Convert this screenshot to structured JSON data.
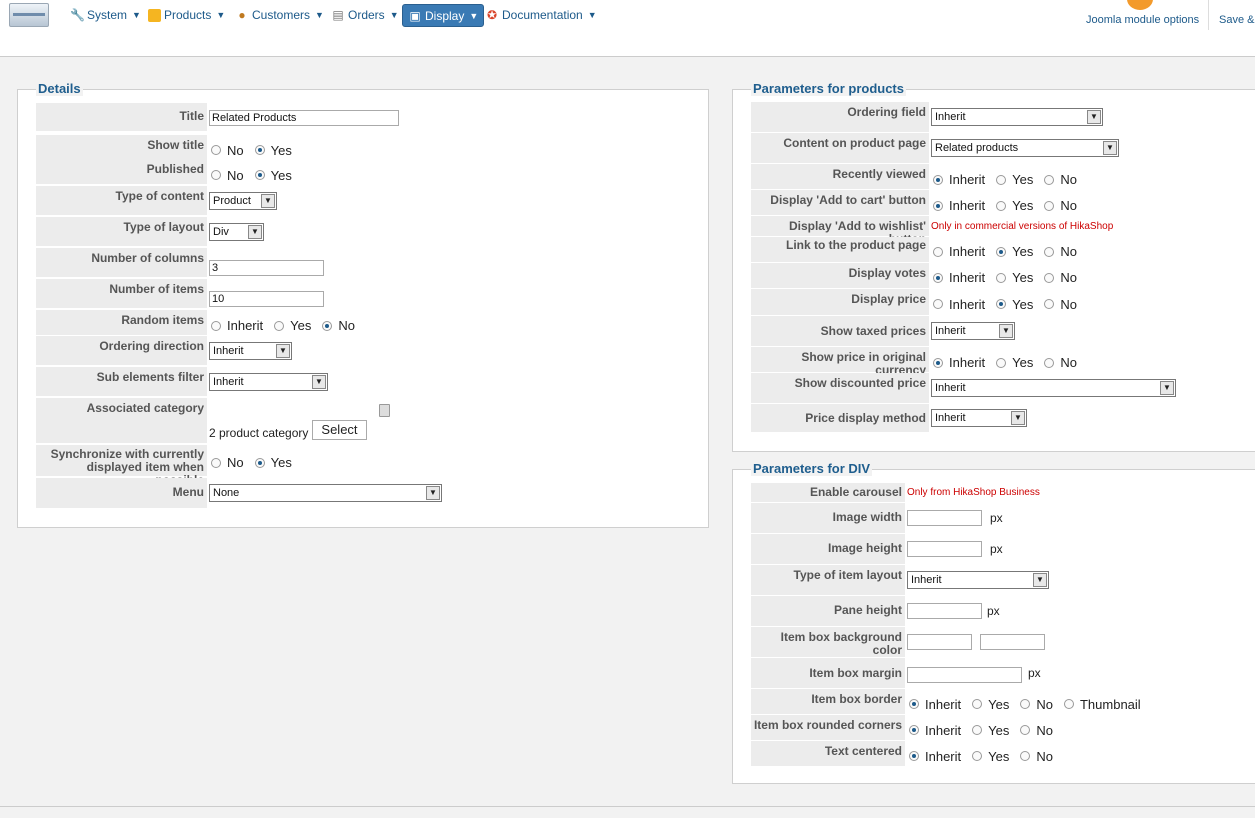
{
  "topnav": {
    "items": [
      {
        "label": "System",
        "icon": "wrench-icon"
      },
      {
        "label": "Products",
        "icon": "box-icon"
      },
      {
        "label": "Customers",
        "icon": "users-icon"
      },
      {
        "label": "Orders",
        "icon": "clipboard-icon"
      },
      {
        "label": "Display",
        "icon": "window-icon"
      },
      {
        "label": "Documentation",
        "icon": "lifebuoy-icon"
      }
    ],
    "joomla_options": "Joomla module options",
    "save": "Save &"
  },
  "details": {
    "legend": "Details",
    "title_label": "Title",
    "title_value": "Related Products",
    "show_title_label": "Show title",
    "published_label": "Published",
    "type_content_label": "Type of content",
    "type_content_value": "Product",
    "type_layout_label": "Type of layout",
    "type_layout_value": "Div",
    "columns_label": "Number of columns",
    "columns_value": "3",
    "items_label": "Number of items",
    "items_value": "10",
    "random_label": "Random items",
    "ordering_dir_label": "Ordering direction",
    "ordering_dir_value": "Inherit",
    "sub_filter_label": "Sub elements filter",
    "sub_filter_value": "Inherit",
    "assoc_cat_label": "Associated category",
    "assoc_cat_value": "2 product category",
    "select_btn": "Select",
    "sync_label": "Synchronize with currently displayed item when possible",
    "menu_label": "Menu",
    "menu_value": "None",
    "no": "No",
    "yes": "Yes",
    "inherit": "Inherit"
  },
  "products": {
    "legend": "Parameters for products",
    "ordering_field_label": "Ordering field",
    "ordering_field_value": "Inherit",
    "content_page_label": "Content on product page",
    "content_page_value": "Related products",
    "recently_label": "Recently viewed",
    "add_cart_label": "Display 'Add to cart' button",
    "wishlist_label": "Display 'Add to wishlist' button",
    "wishlist_note": "Only in commercial versions of HikaShop",
    "link_label": "Link to the product page",
    "votes_label": "Display votes",
    "price_label": "Display price",
    "taxed_label": "Show taxed prices",
    "taxed_value": "Inherit",
    "orig_currency_label": "Show price in original currency",
    "discounted_label": "Show discounted price",
    "discounted_value": "Inherit",
    "price_method_label": "Price display method",
    "price_method_value": "Inherit"
  },
  "div": {
    "legend": "Parameters for DIV",
    "carousel_label": "Enable carousel",
    "carousel_note": "Only from HikaShop Business",
    "img_width_label": "Image width",
    "img_height_label": "Image height",
    "item_layout_label": "Type of item layout",
    "item_layout_value": "Inherit",
    "pane_height_label": "Pane height",
    "bg_color_label": "Item box background color",
    "margin_label": "Item box margin",
    "border_label": "Item box border",
    "rounded_label": "Item box rounded corners",
    "centered_label": "Text centered",
    "px": "px",
    "thumbnail": "Thumbnail"
  }
}
